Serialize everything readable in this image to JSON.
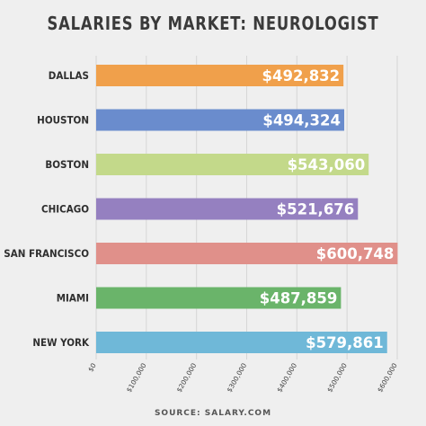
{
  "chart_data": {
    "type": "bar",
    "orientation": "horizontal",
    "title": "SALARIES BY MARKET: NEUROLOGIST",
    "categories": [
      "DALLAS",
      "HOUSTON",
      "BOSTON",
      "CHICAGO",
      "SAN FRANCISCO",
      "MIAMI",
      "NEW YORK"
    ],
    "values": [
      492832,
      494324,
      543060,
      521676,
      600748,
      487859,
      579861
    ],
    "value_labels": [
      "$492,832",
      "$494,324",
      "$543,060",
      "$521,676",
      "$600,748",
      "$487,859",
      "$579,861"
    ],
    "colors": [
      "#f0a04b",
      "#6a8ccd",
      "#c3d98a",
      "#9580c0",
      "#e0908a",
      "#6ab46a",
      "#6fb8d8"
    ],
    "xlim": [
      0,
      600000
    ],
    "xticks": [
      0,
      100000,
      200000,
      300000,
      400000,
      500000,
      600000
    ],
    "xtick_labels": [
      "$0",
      "$100,000",
      "$200,000",
      "$300,000",
      "$400,000",
      "$500,000",
      "$600,000"
    ],
    "grid": true,
    "xlabel": "",
    "ylabel": ""
  },
  "source": "SOURCE: SALARY.COM"
}
